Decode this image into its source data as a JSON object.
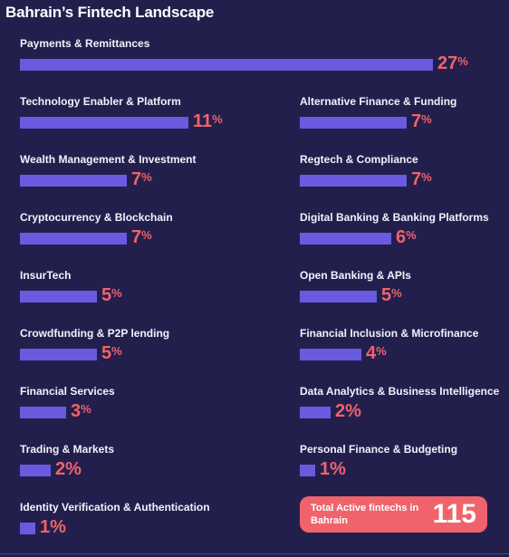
{
  "title": "Bahrain’s Fintech Landscape",
  "chart_data": {
    "type": "bar",
    "title": "Bahrain’s Fintech Landscape",
    "unit": "%",
    "categories": [
      "Payments & Remittances",
      "Technology Enabler & Platform",
      "Alternative Finance & Funding",
      "Wealth Management & Investment",
      "Regtech & Compliance",
      "Cryptocurrency & Blockchain",
      "Digital Banking & Banking Platforms",
      "InsurTech",
      "Open Banking & APIs",
      "Crowdfunding & P2P lending",
      "Financial Inclusion & Microfinance",
      "Financial Services",
      "Data Analytics & Business Intelligence",
      "Trading & Markets",
      "Personal Finance & Budgeting",
      "Identity Verification & Authentication"
    ],
    "values": [
      27,
      11,
      7,
      7,
      7,
      7,
      6,
      5,
      5,
      5,
      4,
      3,
      2,
      2,
      1,
      1
    ],
    "bar_color": "#6a5ae0",
    "value_color": "#f0636b"
  },
  "total": {
    "label": "Total Active fintechs in Bahrain",
    "value": "115",
    "color": "#f0636b"
  }
}
